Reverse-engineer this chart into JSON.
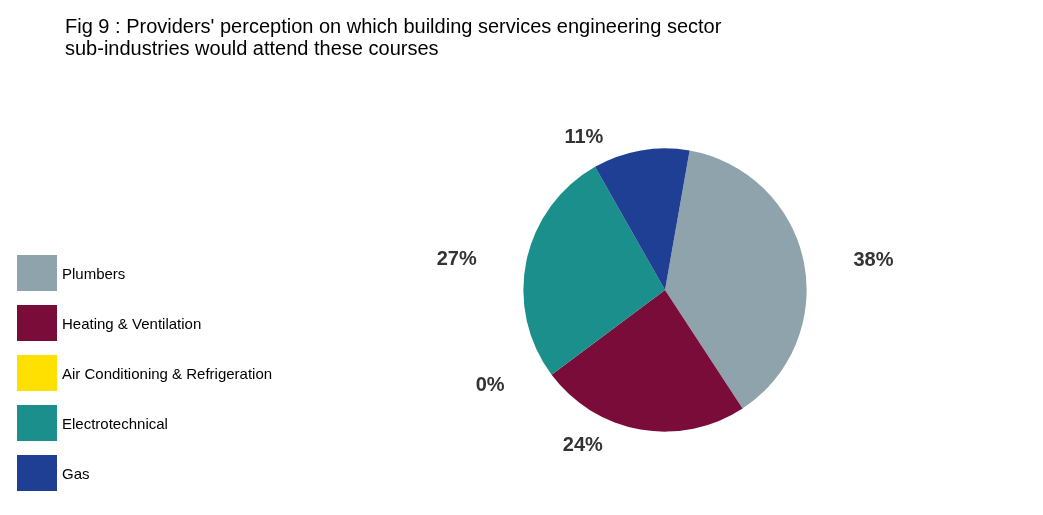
{
  "chart_data": {
    "type": "pie",
    "title": "Fig 9 : Providers' perception on which building services engineering sector sub-industries would attend these courses",
    "categories": [
      "Plumbers",
      "Heating & Ventilation",
      "Air Conditioning & Refrigeration",
      "Electrotechnical",
      "Gas"
    ],
    "values": [
      38,
      24,
      0,
      27,
      11
    ],
    "colors": [
      "#8fa3ad",
      "#7a0c3a",
      "#ffe000",
      "#1a8f8c",
      "#1f3f94"
    ],
    "value_labels": [
      "38%",
      "24%",
      "0%",
      "27%",
      "11%"
    ],
    "legend": "left"
  }
}
